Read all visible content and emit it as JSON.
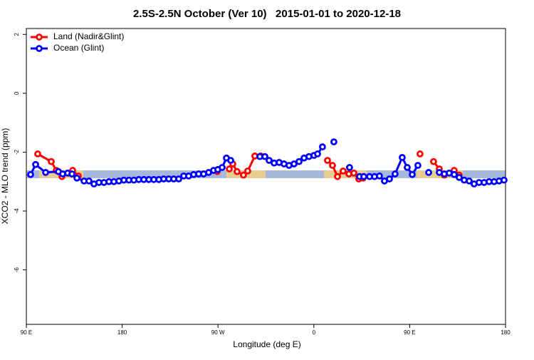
{
  "chart_data": {
    "type": "line",
    "title": "2.5S-2.5N October (Ver 10)   2015-01-01 to 2020-12-18",
    "xlabel": "Longitude (deg E)",
    "ylabel": "XCO2 - MLO trend (ppm)",
    "xlim": [
      90,
      540
    ],
    "ylim": [
      -7.85,
      2.2
    ],
    "xticks": [
      {
        "value": 90,
        "label": "90 E"
      },
      180,
      {
        "value": 270,
        "label": "90 W"
      },
      {
        "value": 360,
        "label": "0"
      },
      {
        "value": 450,
        "label": "90 E"
      },
      {
        "value": 540,
        "label": "180"
      }
    ],
    "yticks": [
      -6,
      -4,
      -2,
      0,
      2
    ],
    "legend": "top-left",
    "series": [
      {
        "name": "Land (Nadir&Glint)",
        "color": "#ff0000",
        "x": [
          100.7,
          113.4,
          118.1,
          123.4,
          133.5,
          138.8,
          null,
          269.2,
          null,
          280.6,
          283.9,
          287.9,
          293.9,
          297.9,
          304.6,
          310.0,
          null,
          372.8,
          377.5,
          382.2,
          387.5,
          392.9,
          397.6,
          402.2,
          406.3,
          null,
          459.7,
          null,
          472.4,
          477.8,
          482.5,
          null,
          491.8,
          496.5
        ],
        "values": [
          -2.06,
          -2.32,
          -2.62,
          -2.83,
          -2.62,
          -2.81,
          null,
          -2.66,
          null,
          -2.57,
          -2.4,
          -2.66,
          -2.78,
          -2.64,
          -2.13,
          -2.13,
          null,
          -2.28,
          -2.45,
          -2.83,
          -2.64,
          -2.74,
          -2.71,
          -2.91,
          -2.88,
          null,
          -2.06,
          null,
          -2.32,
          -2.57,
          -2.78,
          null,
          -2.62,
          -2.78
        ]
      },
      {
        "name": "Ocean (Glint)",
        "color": "#0000ff",
        "x": [
          94.0,
          98.7,
          108.1,
          120.1,
          124.1,
          128.8,
          132.8,
          137.5,
          144.2,
          148.8,
          153.5,
          158.2,
          162.9,
          167.6,
          172.2,
          176.9,
          181.6,
          186.3,
          191.0,
          195.6,
          200.3,
          205.0,
          209.7,
          214.4,
          219.0,
          223.7,
          228.4,
          233.1,
          237.8,
          242.4,
          247.1,
          251.8,
          256.5,
          261.2,
          265.8,
          269.8,
          273.9,
          277.9,
          281.9,
          null,
          309.3,
          314.0,
          318.0,
          322.7,
          327.4,
          332.0,
          336.7,
          341.4,
          346.1,
          350.8,
          355.4,
          360.1,
          363.5,
          368.1,
          null,
          378.8,
          null,
          393.5,
          null,
          402.9,
          406.9,
          412.3,
          417.0,
          421.6,
          426.3,
          431.0,
          436.3,
          443.0,
          447.7,
          452.4,
          457.7,
          null,
          467.8,
          null,
          477.8,
          482.5,
          487.1,
          491.8,
          496.5,
          501.2,
          505.9,
          510.5,
          515.2,
          519.9,
          524.6,
          529.3,
          533.9,
          538.6
        ],
        "values": [
          -2.76,
          -2.42,
          -2.69,
          -2.66,
          -2.74,
          -2.71,
          -2.74,
          -2.88,
          -2.98,
          -2.98,
          -3.08,
          -3.03,
          -3.03,
          -3.0,
          -3.0,
          -2.98,
          -2.95,
          -2.95,
          -2.95,
          -2.93,
          -2.93,
          -2.93,
          -2.93,
          -2.93,
          -2.91,
          -2.91,
          -2.91,
          -2.91,
          -2.81,
          -2.81,
          -2.76,
          -2.74,
          -2.74,
          -2.69,
          -2.62,
          -2.59,
          -2.52,
          -2.2,
          -2.28,
          null,
          -2.15,
          -2.15,
          -2.28,
          -2.37,
          -2.35,
          -2.4,
          -2.45,
          -2.4,
          -2.32,
          -2.2,
          -2.15,
          -2.11,
          -2.06,
          -1.82,
          null,
          -1.65,
          null,
          -2.52,
          null,
          -2.83,
          -2.83,
          -2.83,
          -2.83,
          -2.81,
          -2.98,
          -2.91,
          -2.74,
          -2.18,
          -2.52,
          -2.76,
          -2.45,
          null,
          -2.69,
          null,
          -2.69,
          -2.74,
          -2.71,
          -2.76,
          -2.86,
          -2.95,
          -2.98,
          -3.08,
          -3.03,
          -3.03,
          -3.0,
          -3.0,
          -2.98,
          -2.95
        ]
      }
    ]
  }
}
